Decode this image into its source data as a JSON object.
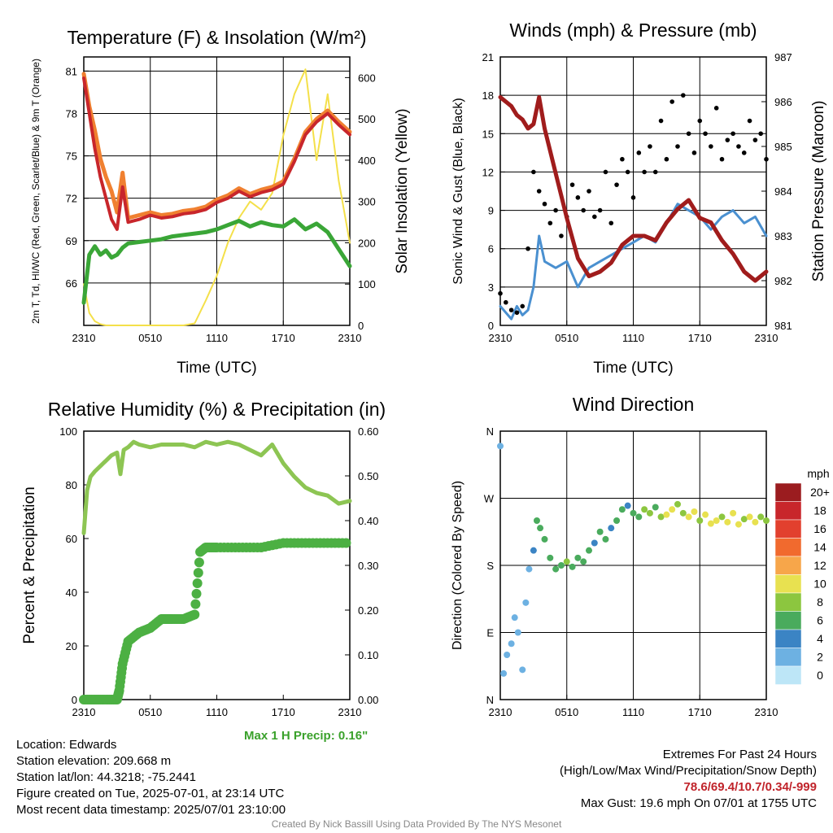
{
  "chart_data": [
    {
      "type": "line",
      "title": "Temperature (F) & Insolation (W/m²)",
      "xlabel": "Time (UTC)",
      "ylabel": "2m T, Td, HI/WC (Red, Green, Scarlet/Blue) & 9m T (Orange)",
      "ylabel2": "Solar Insolation (Yellow)",
      "x_ticks": [
        "2310",
        "0510",
        "1110",
        "1710",
        "2310"
      ],
      "ylim": [
        63,
        82
      ],
      "y_ticks": [
        "66",
        "69",
        "72",
        "75",
        "78",
        "81"
      ],
      "ylim2": [
        0,
        650
      ],
      "y2_ticks": [
        "0",
        "100",
        "200",
        "300",
        "400",
        "500",
        "600"
      ],
      "grid": true,
      "x": [
        0,
        0.5,
        1,
        1.5,
        2,
        2.5,
        3,
        3.5,
        4,
        5,
        6,
        7,
        8,
        9,
        10,
        11,
        12,
        13,
        14,
        15,
        16,
        17,
        18,
        19,
        20,
        21,
        22,
        23,
        24
      ],
      "series": [
        {
          "color": "#c8262b",
          "values": [
            80.5,
            78,
            75.5,
            73.5,
            72,
            70.5,
            69.8,
            72.8,
            70.3,
            70.5,
            70.8,
            70.6,
            70.7,
            70.9,
            71,
            71.2,
            71.7,
            72,
            72.5,
            72.1,
            72.4,
            72.6,
            73,
            74.6,
            76.5,
            77.4,
            78,
            77.2,
            76.5
          ]
        },
        {
          "color": "#3aa637",
          "values": [
            64.6,
            68,
            68.6,
            68,
            68.3,
            67.8,
            68,
            68.5,
            68.8,
            68.9,
            69,
            69.1,
            69.3,
            69.4,
            69.5,
            69.6,
            69.8,
            70.1,
            70.4,
            70,
            70.3,
            70.1,
            70,
            70.5,
            69.8,
            70.2,
            69.6,
            68.4,
            67.2
          ]
        },
        {
          "color": "#f08030",
          "values": [
            80.8,
            78.5,
            76.8,
            74.8,
            73.5,
            72.5,
            71,
            73.8,
            70.6,
            70.8,
            71,
            70.8,
            70.9,
            71.1,
            71.2,
            71.4,
            71.9,
            72.2,
            72.7,
            72.3,
            72.6,
            72.8,
            73.2,
            74.8,
            76.7,
            77.6,
            78.2,
            77.4,
            76.7
          ]
        },
        {
          "color": "#f4e04a",
          "axis": "right",
          "values": [
            100,
            30,
            10,
            3,
            0,
            0,
            0,
            0,
            0,
            0,
            0,
            0,
            0,
            0,
            5,
            60,
            120,
            200,
            260,
            300,
            280,
            320,
            460,
            560,
            620,
            400,
            560,
            350,
            200
          ]
        }
      ]
    },
    {
      "type": "scatter",
      "title": "Winds (mph) & Pressure (mb)",
      "xlabel": "Time (UTC)",
      "ylabel": "Sonic Wind & Gust (Blue, Black)",
      "ylabel2": "Station Pressure (Maroon)",
      "x_ticks": [
        "2310",
        "0510",
        "1110",
        "1710",
        "2310"
      ],
      "ylim": [
        0,
        21
      ],
      "y_ticks": [
        "0",
        "3",
        "6",
        "9",
        "12",
        "15",
        "18",
        "21"
      ],
      "ylim2": [
        981,
        987
      ],
      "y2_ticks": [
        "981",
        "982",
        "983",
        "984",
        "985",
        "986",
        "987"
      ],
      "grid": true,
      "series": [
        {
          "name": "",
          "color": "#c8262b",
          "axis": "right",
          "x": [
            0,
            0.5,
            1,
            1.5,
            2,
            2.5,
            3,
            3.5,
            4,
            4.5,
            5,
            6,
            7,
            8,
            9,
            10,
            11,
            12,
            13,
            14,
            15,
            16,
            17,
            18,
            19,
            20,
            21,
            22,
            23,
            24
          ],
          "values": [
            986.1,
            986,
            985.9,
            985.7,
            985.6,
            985.4,
            985.5,
            986.1,
            985.4,
            984.9,
            984.4,
            983.4,
            982.5,
            982.1,
            982.2,
            982.4,
            982.8,
            983,
            983,
            982.9,
            983.3,
            983.6,
            983.8,
            983.4,
            983.3,
            982.9,
            982.6,
            982.2,
            982,
            982.2
          ]
        },
        {
          "name": "",
          "color": "#4a90d0",
          "x": [
            0,
            1,
            1.5,
            2,
            2.5,
            3,
            3.5,
            4,
            5,
            6,
            7,
            8,
            9,
            10,
            11,
            12,
            13,
            14,
            15,
            16,
            17,
            18,
            19,
            20,
            21,
            22,
            23,
            24
          ],
          "values": [
            1.5,
            0.5,
            1.5,
            0.8,
            1.2,
            3,
            7,
            5,
            4.5,
            5,
            3,
            4.5,
            5,
            5.5,
            6,
            6.5,
            7,
            6.5,
            8,
            9.5,
            9,
            8.5,
            7.5,
            8.5,
            9,
            8,
            8.5,
            7
          ]
        },
        {
          "name": "",
          "color": "#000000",
          "x": [
            0,
            0.5,
            1,
            1.5,
            2,
            2.5,
            3,
            3.5,
            4,
            4.5,
            5,
            5.5,
            6,
            6.5,
            7,
            7.5,
            8,
            8.5,
            9,
            9.5,
            10,
            10.5,
            11,
            11.5,
            12,
            12.5,
            13,
            13.5,
            14,
            14.5,
            15,
            15.5,
            16,
            16.5,
            17,
            17.5,
            18,
            18.5,
            19,
            19.5,
            20,
            20.5,
            21,
            21.5,
            22,
            22.5,
            23,
            23.5,
            24
          ],
          "values": [
            2.5,
            1.8,
            1.2,
            1,
            1.5,
            6,
            12,
            10.5,
            9.5,
            8,
            9,
            7,
            8.5,
            11,
            10,
            9,
            10.5,
            8.5,
            9,
            12,
            8,
            11,
            13,
            12,
            10,
            13.5,
            12,
            14,
            12,
            16,
            13,
            17.5,
            14,
            18,
            15,
            13.5,
            16,
            15,
            14,
            17,
            13,
            14.5,
            15,
            14,
            13.5,
            16,
            14.5,
            15,
            13
          ]
        }
      ]
    },
    {
      "type": "line",
      "title": "Relative Humidity (%) & Precipitation (in)",
      "xlabel": "",
      "ylabel": "Percent & Precipitation",
      "x_ticks": [
        "2310",
        "0510",
        "1110",
        "1710",
        "2310"
      ],
      "ylim": [
        0,
        100
      ],
      "y_ticks": [
        "0",
        "20",
        "40",
        "60",
        "80",
        "100"
      ],
      "ylim2": [
        0,
        0.6
      ],
      "y2_ticks": [
        "0.00",
        "0.10",
        "0.20",
        "0.30",
        "0.40",
        "0.50",
        "0.60"
      ],
      "grid": false,
      "series": [
        {
          "color": "#8dc553",
          "x": [
            0,
            0.3,
            0.6,
            1,
            1.5,
            2,
            2.5,
            3,
            3.3,
            3.6,
            4,
            4.5,
            5,
            6,
            7,
            8,
            9,
            10,
            11,
            12,
            13,
            14,
            15,
            16,
            17,
            18,
            19,
            20,
            21,
            22,
            23,
            24
          ],
          "values": [
            62,
            78,
            83,
            85,
            87,
            89,
            91,
            92,
            84,
            93,
            94,
            96,
            95,
            94,
            95,
            95,
            95,
            94,
            96,
            95,
            96,
            95,
            93,
            91,
            95,
            88,
            83,
            79,
            77,
            76,
            73,
            74
          ]
        },
        {
          "color": "#4cb043",
          "axis": "right",
          "x": [
            0,
            1,
            2,
            3,
            3.2,
            3.5,
            4,
            5,
            6,
            7,
            7.5,
            8,
            9,
            10,
            10.5,
            11,
            12,
            14,
            16,
            18,
            20,
            22,
            24
          ],
          "values": [
            0,
            0,
            0,
            0,
            0.02,
            0.08,
            0.13,
            0.15,
            0.16,
            0.18,
            0.18,
            0.18,
            0.18,
            0.19,
            0.33,
            0.34,
            0.34,
            0.34,
            0.34,
            0.35,
            0.35,
            0.35,
            0.35
          ]
        }
      ]
    },
    {
      "type": "scatter",
      "title": "Wind Direction",
      "ylabel": "Direction (Colored By Speed)",
      "x_ticks": [
        "2310",
        "0510",
        "1110",
        "1710",
        "2310"
      ],
      "y_ticks": [
        "N",
        "E",
        "S",
        "W",
        "N"
      ],
      "ylim": [
        0,
        360
      ],
      "grid": true,
      "colorbar_title": "mph",
      "colorbar_labels": [
        "20+",
        "18",
        "16",
        "14",
        "12",
        "10",
        "8",
        "6",
        "4",
        "2",
        "0"
      ],
      "colorbar_colors": [
        "#9b1c1f",
        "#c8262b",
        "#e2402e",
        "#f16a2e",
        "#f7a64a",
        "#e8e150",
        "#8cc63f",
        "#4aab5d",
        "#3b84c4",
        "#6db1e2",
        "#bde6f7"
      ],
      "x": [
        0,
        0.3,
        0.6,
        1,
        1.3,
        1.6,
        2,
        2.3,
        2.6,
        3,
        3.3,
        3.6,
        4,
        4.5,
        5,
        5.5,
        6,
        6.5,
        7,
        7.5,
        8,
        8.5,
        9,
        9.5,
        10,
        10.5,
        11,
        11.5,
        12,
        12.5,
        13,
        13.5,
        14,
        14.5,
        15,
        15.5,
        16,
        16.5,
        17,
        17.5,
        18,
        18.5,
        19,
        19.5,
        20,
        20.5,
        21,
        21.5,
        22,
        22.5,
        23,
        23.5,
        24
      ],
      "values": [
        340,
        35,
        60,
        75,
        110,
        90,
        40,
        130,
        175,
        200,
        240,
        230,
        215,
        190,
        175,
        180,
        185,
        178,
        190,
        185,
        200,
        210,
        225,
        215,
        230,
        240,
        255,
        260,
        250,
        245,
        255,
        250,
        258,
        245,
        248,
        255,
        262,
        250,
        245,
        252,
        240,
        248,
        236,
        240,
        245,
        238,
        250,
        235,
        242,
        245,
        238,
        245,
        240
      ],
      "speeds": [
        1,
        1,
        2,
        1,
        1,
        2,
        1,
        2,
        2,
        3,
        5,
        6,
        6,
        5,
        5,
        6,
        7,
        6,
        5,
        6,
        5,
        4,
        5,
        6,
        4,
        5,
        6,
        4,
        5,
        6,
        7,
        8,
        6,
        8,
        9,
        10,
        7,
        8,
        9,
        10,
        8,
        9,
        9,
        10,
        8,
        9,
        10,
        9,
        8,
        10,
        9,
        8,
        7
      ]
    }
  ],
  "labels": {
    "time_utc": "Time (UTC)",
    "max_precip": "Max 1 H Precip: 0.16\""
  },
  "info": {
    "location": "Location: Edwards",
    "elevation": "Station elevation: 209.668 m",
    "latlon": "Station lat/lon: 44.3218; -75.2441",
    "created": "Figure created on Tue, 2025-07-01, at 23:14 UTC",
    "recent": "Most recent data timestamp: 2025/07/01 23:10:00"
  },
  "extremes": {
    "title": "Extremes For Past 24 Hours",
    "subtitle": "(High/Low/Max Wind/Precipitation/Snow Depth)",
    "values": "78.6/69.4/10.7/0.34/-999",
    "gust": "Max Gust: 19.6 mph On 07/01 at 1755 UTC"
  },
  "credit": "Created By Nick Bassill Using Data Provided By The NYS Mesonet"
}
